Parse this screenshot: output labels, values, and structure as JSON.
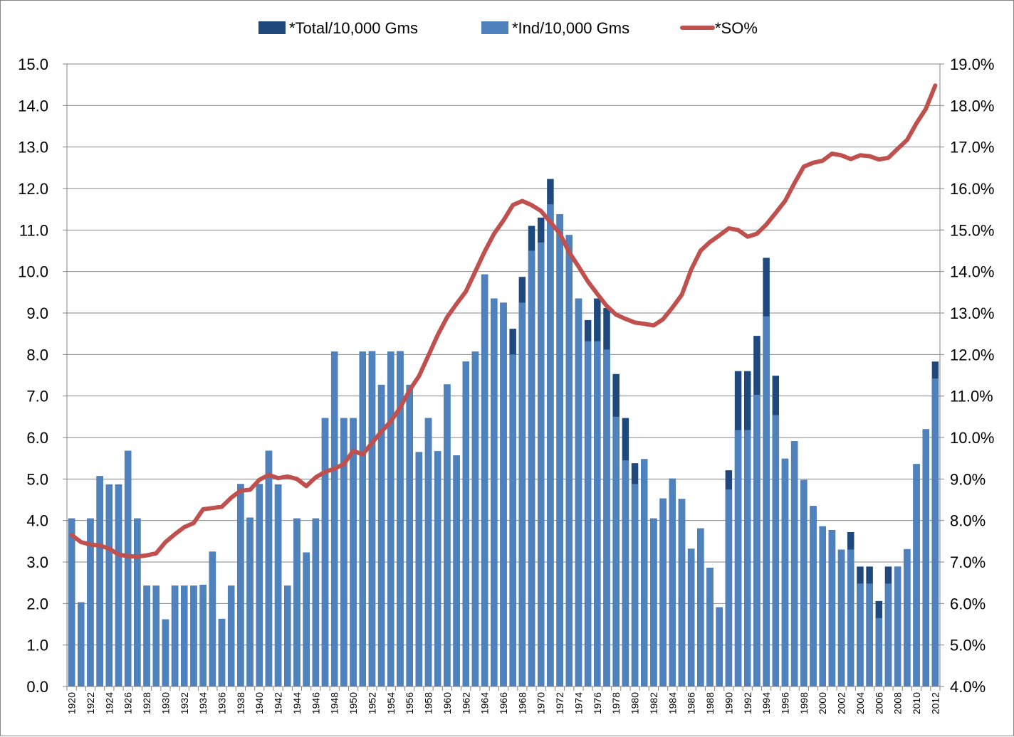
{
  "chart_data": {
    "type": "bar",
    "categories": [
      1920,
      1921,
      1922,
      1923,
      1924,
      1925,
      1926,
      1927,
      1928,
      1929,
      1930,
      1931,
      1932,
      1933,
      1934,
      1935,
      1936,
      1937,
      1938,
      1939,
      1940,
      1941,
      1942,
      1943,
      1944,
      1945,
      1946,
      1947,
      1948,
      1949,
      1950,
      1951,
      1952,
      1953,
      1954,
      1955,
      1956,
      1957,
      1958,
      1959,
      1960,
      1961,
      1962,
      1963,
      1964,
      1965,
      1966,
      1967,
      1968,
      1969,
      1970,
      1971,
      1972,
      1973,
      1974,
      1975,
      1976,
      1977,
      1978,
      1979,
      1980,
      1981,
      1982,
      1983,
      1984,
      1985,
      1986,
      1987,
      1988,
      1989,
      1990,
      1991,
      1992,
      1993,
      1994,
      1995,
      1996,
      1997,
      1998,
      1999,
      2000,
      2001,
      2002,
      2003,
      2004,
      2005,
      2006,
      2007,
      2008,
      2009,
      2010,
      2011,
      2012
    ],
    "x_tick_labels": [
      "1920",
      "1922",
      "1924",
      "1926",
      "1928",
      "1930",
      "1932",
      "1934",
      "1936",
      "1938",
      "1940",
      "1942",
      "1944",
      "1946",
      "1948",
      "1950",
      "1952",
      "1954",
      "1956",
      "1958",
      "1960",
      "1962",
      "1964",
      "1966",
      "1968",
      "1970",
      "1972",
      "1974",
      "1976",
      "1978",
      "1980",
      "1982",
      "1984",
      "1986",
      "1988",
      "1990",
      "1992",
      "1994",
      "1996",
      "1998",
      "2000",
      "2002",
      "2004",
      "2006",
      "2008",
      "2010",
      "2012"
    ],
    "series": [
      {
        "name": "*Total/10,000 Gms",
        "axis": "left",
        "kind": "bar",
        "color": "#1F497D",
        "values": [
          4.05,
          2.03,
          4.05,
          5.07,
          4.87,
          4.87,
          5.68,
          4.05,
          2.43,
          2.43,
          1.62,
          2.43,
          2.43,
          2.43,
          2.45,
          3.25,
          1.63,
          2.43,
          4.88,
          4.07,
          4.88,
          5.68,
          4.87,
          2.43,
          4.05,
          3.23,
          4.05,
          6.47,
          8.07,
          6.47,
          6.47,
          8.07,
          8.08,
          7.27,
          8.07,
          8.08,
          7.27,
          5.65,
          6.47,
          5.67,
          7.28,
          5.57,
          7.83,
          8.07,
          9.93,
          9.35,
          9.25,
          8.62,
          9.87,
          11.1,
          11.3,
          12.23,
          11.38,
          10.88,
          9.35,
          8.83,
          9.35,
          9.12,
          7.53,
          6.47,
          5.38,
          5.48,
          4.05,
          4.53,
          5.01,
          4.52,
          3.32,
          3.81,
          2.86,
          1.91,
          5.21,
          7.6,
          7.6,
          8.45,
          10.33,
          7.49,
          5.49,
          5.91,
          4.98,
          4.35,
          3.86,
          3.77,
          3.3,
          3.72,
          2.89,
          2.89,
          2.06,
          2.89,
          2.89,
          3.31,
          5.36,
          6.2,
          7.83
        ]
      },
      {
        "name": "*Ind/10,000 Gms",
        "axis": "left",
        "kind": "bar",
        "color": "#4F81BD",
        "values": [
          4.05,
          2.03,
          4.05,
          5.07,
          4.87,
          4.87,
          5.68,
          4.05,
          2.43,
          2.43,
          1.62,
          2.43,
          2.43,
          2.43,
          2.45,
          3.25,
          1.63,
          2.43,
          4.88,
          4.07,
          4.88,
          5.68,
          4.87,
          2.43,
          4.05,
          3.23,
          4.05,
          6.47,
          8.07,
          6.47,
          6.47,
          8.07,
          8.08,
          7.27,
          8.07,
          8.08,
          7.27,
          5.65,
          6.47,
          5.67,
          7.28,
          5.57,
          7.83,
          8.07,
          9.93,
          9.35,
          9.25,
          8.0,
          9.25,
          10.5,
          10.7,
          11.62,
          11.38,
          10.88,
          9.35,
          8.32,
          8.32,
          8.12,
          6.5,
          5.45,
          4.88,
          5.48,
          4.05,
          4.53,
          5.01,
          4.52,
          3.32,
          3.81,
          2.86,
          1.91,
          4.75,
          6.18,
          6.18,
          7.03,
          8.92,
          6.54,
          5.49,
          5.91,
          4.98,
          4.35,
          3.86,
          3.77,
          3.3,
          3.3,
          2.48,
          2.48,
          1.65,
          2.48,
          2.89,
          3.31,
          5.36,
          6.2,
          7.42
        ]
      },
      {
        "name": "*SO%",
        "axis": "right",
        "kind": "line",
        "color": "#C0504D",
        "values": [
          7.65,
          7.48,
          7.42,
          7.4,
          7.32,
          7.18,
          7.14,
          7.13,
          7.16,
          7.21,
          7.48,
          7.67,
          7.84,
          7.94,
          8.27,
          8.3,
          8.33,
          8.55,
          8.72,
          8.74,
          8.98,
          9.1,
          9.02,
          9.06,
          9.0,
          8.83,
          9.04,
          9.17,
          9.25,
          9.36,
          9.68,
          9.59,
          9.87,
          10.14,
          10.39,
          10.72,
          11.14,
          11.48,
          11.97,
          12.47,
          12.9,
          13.22,
          13.52,
          14.0,
          14.48,
          14.91,
          15.23,
          15.6,
          15.7,
          15.6,
          15.46,
          15.19,
          14.92,
          14.46,
          14.12,
          13.76,
          13.46,
          13.17,
          12.96,
          12.86,
          12.77,
          12.74,
          12.7,
          12.85,
          13.13,
          13.44,
          14.05,
          14.5,
          14.71,
          14.87,
          15.04,
          15.0,
          14.84,
          14.91,
          15.13,
          15.41,
          15.7,
          16.13,
          16.53,
          16.62,
          16.67,
          16.84,
          16.8,
          16.71,
          16.8,
          16.78,
          16.7,
          16.74,
          16.96,
          17.17,
          17.57,
          17.92,
          18.48
        ]
      }
    ],
    "y_left": {
      "ylim": [
        0,
        15
      ],
      "step": 1,
      "ticks": [
        "0.0",
        "1.0",
        "2.0",
        "3.0",
        "4.0",
        "5.0",
        "6.0",
        "7.0",
        "8.0",
        "9.0",
        "10.0",
        "11.0",
        "12.0",
        "13.0",
        "14.0",
        "15.0"
      ]
    },
    "y_right": {
      "ylim": [
        4,
        19
      ],
      "step": 1,
      "ticks": [
        "4.0%",
        "5.0%",
        "6.0%",
        "7.0%",
        "8.0%",
        "9.0%",
        "10.0%",
        "11.0%",
        "12.0%",
        "13.0%",
        "14.0%",
        "15.0%",
        "16.0%",
        "17.0%",
        "18.0%",
        "19.0%"
      ]
    },
    "grid": true,
    "legend_position": "top",
    "title": "",
    "xlabel": "",
    "ylabel": ""
  }
}
